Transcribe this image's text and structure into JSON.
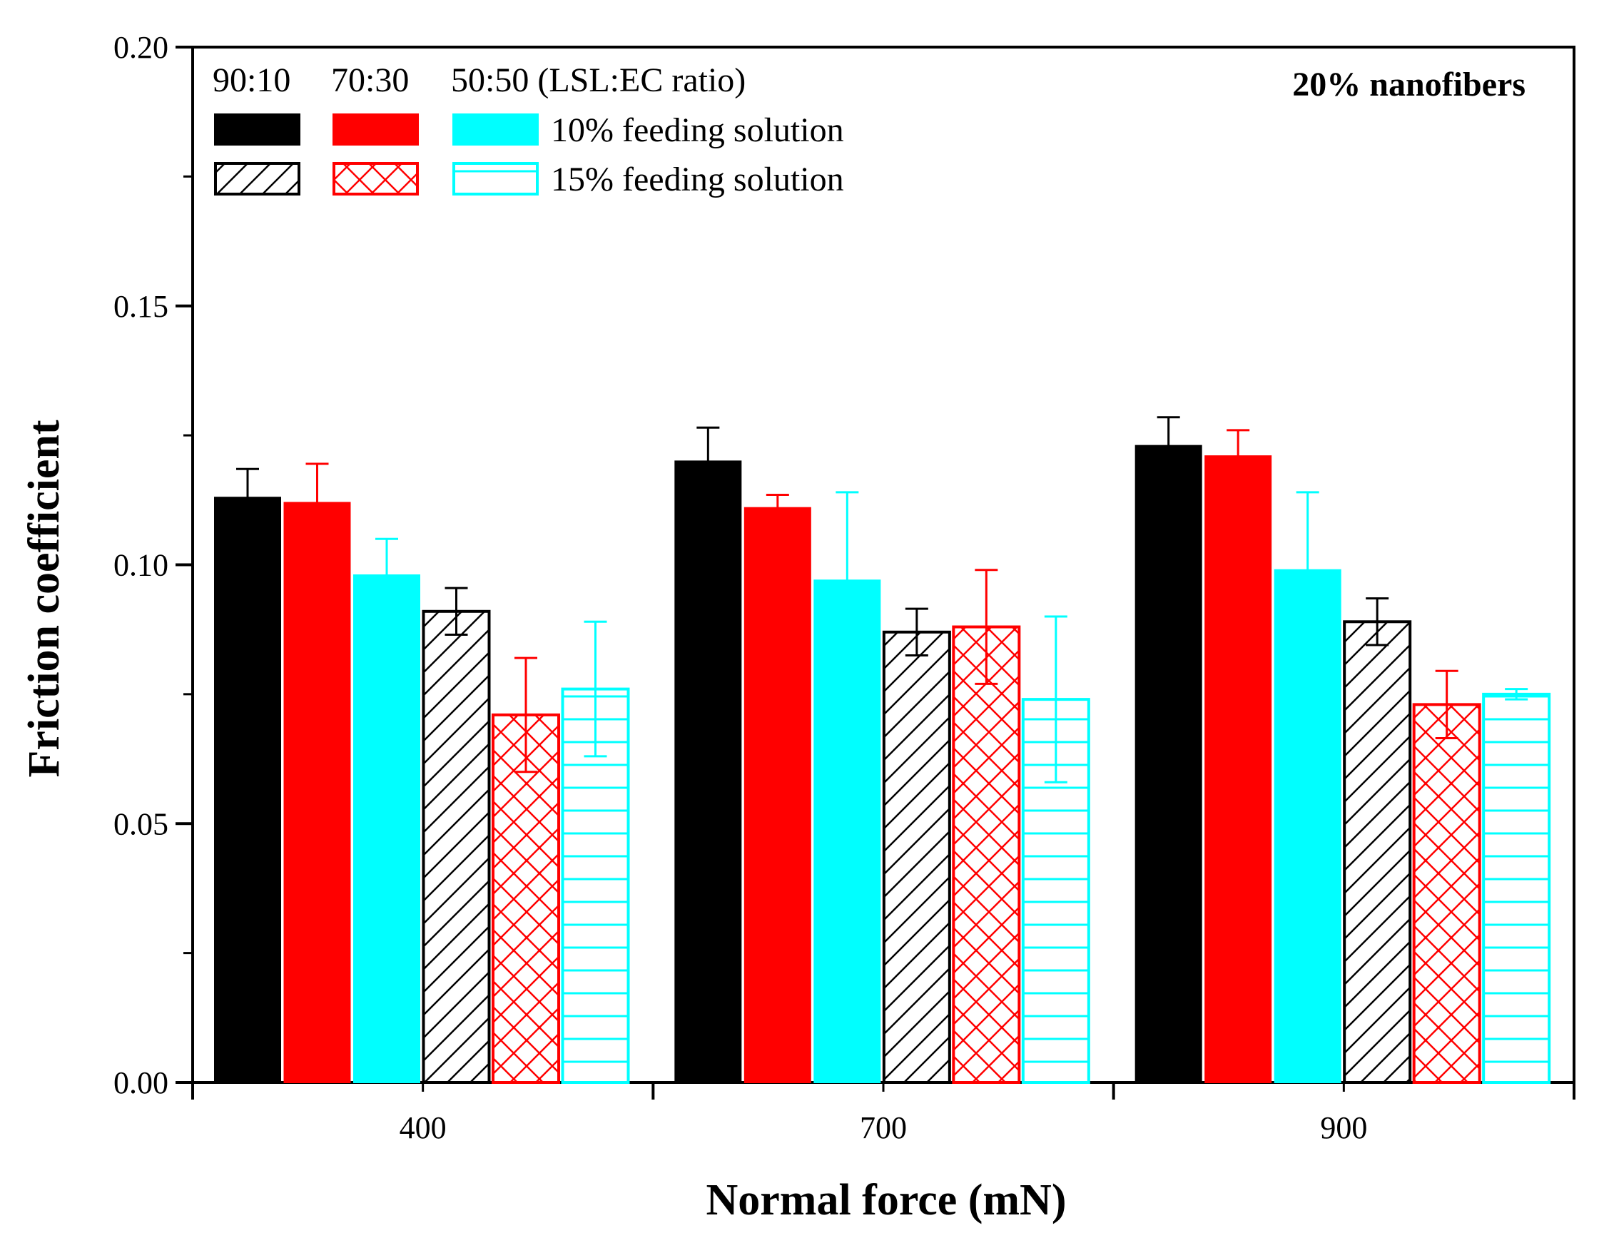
{
  "chart_data": {
    "type": "bar",
    "title": "",
    "annotation": "20% nanofibers",
    "xlabel": "Normal force (mN)",
    "ylabel": "Friction coefficient",
    "categories": [
      "400",
      "700",
      "900"
    ],
    "ylim": [
      0,
      0.2
    ],
    "yticks": [
      "0.00",
      "0.05",
      "0.10",
      "0.15",
      "0.20"
    ],
    "legend": {
      "ratio_labels": [
        "90:10",
        "70:30",
        "50:50 (LSL:EC ratio)"
      ],
      "row_labels": [
        "10% feeding solution",
        "15% feeding solution"
      ],
      "placement": "top-left"
    },
    "series": [
      {
        "name": "90:10, 10% feeding solution",
        "color": "#000000",
        "pattern": "solid",
        "values": [
          0.113,
          0.12,
          0.123
        ],
        "errors": [
          0.0055,
          0.0065,
          0.0055
        ]
      },
      {
        "name": "70:30, 10% feeding solution",
        "color": "#ff0000",
        "pattern": "solid",
        "values": [
          0.112,
          0.111,
          0.121
        ],
        "errors": [
          0.0075,
          0.0025,
          0.005
        ]
      },
      {
        "name": "50:50, 10% feeding solution",
        "color": "#00ffff",
        "pattern": "solid",
        "values": [
          0.098,
          0.097,
          0.099
        ],
        "errors": [
          0.007,
          0.017,
          0.015
        ]
      },
      {
        "name": "90:10, 15% feeding solution",
        "color": "#000000",
        "pattern": "diagonal",
        "values": [
          0.091,
          0.087,
          0.089
        ],
        "errors": [
          0.0045,
          0.0045,
          0.0045
        ]
      },
      {
        "name": "70:30, 15% feeding solution",
        "color": "#ff0000",
        "pattern": "crosshatch",
        "values": [
          0.071,
          0.088,
          0.073
        ],
        "errors": [
          0.011,
          0.011,
          0.0065
        ]
      },
      {
        "name": "50:50, 15% feeding solution",
        "color": "#00ffff",
        "pattern": "horizontal",
        "values": [
          0.076,
          0.074,
          0.075
        ],
        "errors": [
          0.013,
          0.016,
          0.001
        ]
      }
    ]
  }
}
